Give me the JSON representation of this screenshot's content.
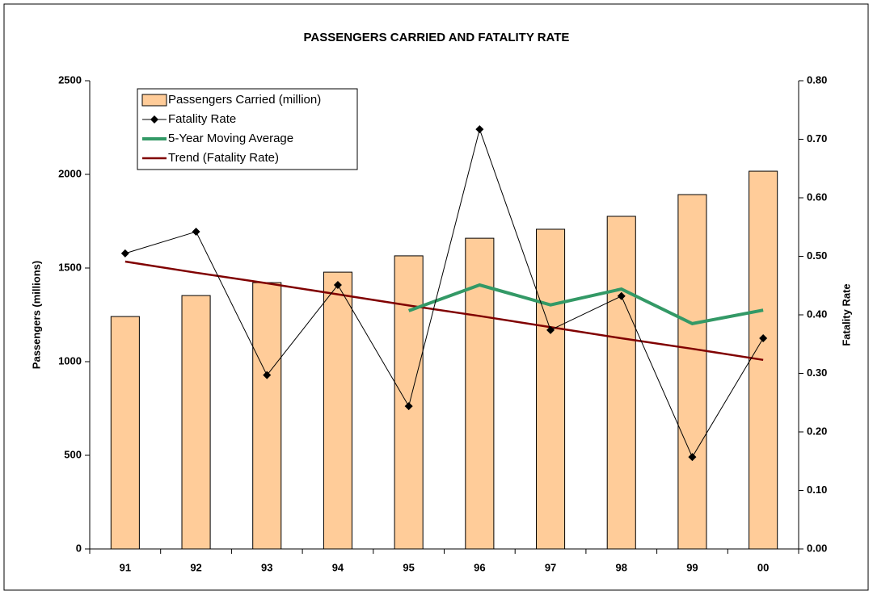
{
  "chart_data": {
    "type": "bar",
    "title": "PASSENGERS CARRIED AND FATALITY RATE",
    "ylabel": "Passengers (millions)",
    "y2label": "Fatality Rate",
    "categories": [
      "91",
      "92",
      "93",
      "94",
      "95",
      "96",
      "97",
      "98",
      "99",
      "00"
    ],
    "series": [
      {
        "name": "Passengers Carried (million)",
        "type": "bar",
        "color": "#ffcc99",
        "values": [
          1241,
          1353,
          1422,
          1478,
          1565,
          1659,
          1707,
          1776,
          1892,
          2017
        ]
      },
      {
        "name": "Fatality Rate",
        "type": "line",
        "marker": "diamond",
        "axis": "y2",
        "color": "#000000",
        "values": [
          0.505,
          0.542,
          0.297,
          0.451,
          0.244,
          0.717,
          0.374,
          0.432,
          0.157,
          0.36
        ]
      },
      {
        "name": "5-Year Moving Average",
        "type": "line",
        "axis": "y2",
        "color": "#339966",
        "values": [
          null,
          null,
          null,
          null,
          0.407,
          0.451,
          0.417,
          0.444,
          0.385,
          0.408
        ]
      },
      {
        "name": "Trend (Fatality Rate)",
        "type": "line",
        "axis": "y2",
        "color": "#800000",
        "values": [
          0.491,
          0.472,
          0.454,
          0.435,
          0.416,
          0.398,
          0.379,
          0.36,
          0.342,
          0.323
        ]
      }
    ],
    "ylim": [
      0,
      2500
    ],
    "yticks": [
      0,
      500,
      1000,
      1500,
      2000,
      2500
    ],
    "y2lim": [
      0,
      0.8
    ],
    "y2ticks": [
      {
        "value": 0,
        "label": "0.00"
      },
      {
        "value": 0.1,
        "label": "0.10"
      },
      {
        "value": 0.2,
        "label": "0.20"
      },
      {
        "value": 0.3,
        "label": "0.30"
      },
      {
        "value": 0.4,
        "label": "0.40"
      },
      {
        "value": 0.5,
        "label": "0.50"
      },
      {
        "value": 0.6,
        "label": "0.60"
      },
      {
        "value": 0.7,
        "label": "0.70"
      },
      {
        "value": 0.8,
        "label": "0.80"
      }
    ],
    "grid": false,
    "legend": "upper left"
  }
}
